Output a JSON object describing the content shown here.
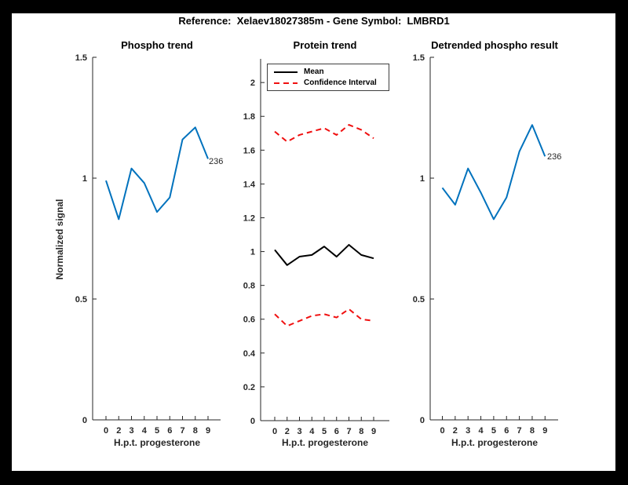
{
  "figure": {
    "title": "Reference:  Xelaev18027385m - Gene Symbol:  LMBRD1"
  },
  "colors": {
    "background": "#000000",
    "canvas": "#ffffff",
    "axis_text": "#262626",
    "line_blue": "#0072bd",
    "line_black": "#000000",
    "line_red": "#f01010"
  },
  "legend": {
    "entries": [
      {
        "label": "Mean",
        "color": "#000000",
        "style": "solid"
      },
      {
        "label": "Confidence Interval",
        "color": "#f01010",
        "style": "dashed"
      }
    ]
  },
  "chart_data": [
    {
      "type": "line",
      "title": "Phospho trend",
      "xlabel": "H.p.t. progesterone",
      "ylabel": "Normalized signal",
      "x": [
        0,
        2,
        3,
        4,
        5,
        6,
        7,
        8,
        9
      ],
      "series": [
        {
          "name": "phospho signal",
          "color": "#0072bd",
          "style": "solid",
          "values": [
            0.99,
            0.83,
            1.04,
            0.98,
            0.86,
            0.92,
            1.16,
            1.21,
            1.08
          ]
        }
      ],
      "ylim": [
        0,
        1.5
      ],
      "yticks": [
        0,
        0.5,
        1,
        1.5
      ],
      "end_label": "236",
      "grid": false,
      "legend_shown": false
    },
    {
      "type": "line",
      "title": "Protein trend",
      "xlabel": "H.p.t. progesterone",
      "x": [
        0,
        2,
        3,
        4,
        5,
        6,
        7,
        8,
        9
      ],
      "series": [
        {
          "name": "Mean",
          "color": "#000000",
          "style": "solid",
          "values": [
            1.01,
            0.92,
            0.97,
            0.98,
            1.03,
            0.97,
            1.04,
            0.98,
            0.96
          ]
        },
        {
          "name": "Confidence Interval upper",
          "color": "#f01010",
          "style": "dashed",
          "values": [
            1.71,
            1.65,
            1.69,
            1.71,
            1.73,
            1.69,
            1.75,
            1.72,
            1.67
          ]
        },
        {
          "name": "Confidence Interval lower",
          "color": "#f01010",
          "style": "dashed",
          "values": [
            0.63,
            0.56,
            0.59,
            0.62,
            0.63,
            0.61,
            0.66,
            0.6,
            0.59
          ]
        }
      ],
      "ylim": [
        0,
        2.14
      ],
      "yticks": [
        0,
        0.2,
        0.4,
        0.6,
        0.8,
        1,
        1.2,
        1.4,
        1.6,
        1.8,
        2
      ],
      "grid": false,
      "legend_shown": true,
      "legend_position": "northwest"
    },
    {
      "type": "line",
      "title": "Detrended phospho result",
      "xlabel": "H.p.t. progesterone",
      "x": [
        0,
        2,
        3,
        4,
        5,
        6,
        7,
        8,
        9
      ],
      "series": [
        {
          "name": "detrended phospho signal",
          "color": "#0072bd",
          "style": "solid",
          "values": [
            0.96,
            0.89,
            1.04,
            0.94,
            0.83,
            0.92,
            1.11,
            1.22,
            1.09
          ]
        }
      ],
      "ylim": [
        0,
        1.5
      ],
      "yticks": [
        0,
        0.5,
        1,
        1.5
      ],
      "end_label": "236",
      "grid": false,
      "legend_shown": false
    }
  ]
}
